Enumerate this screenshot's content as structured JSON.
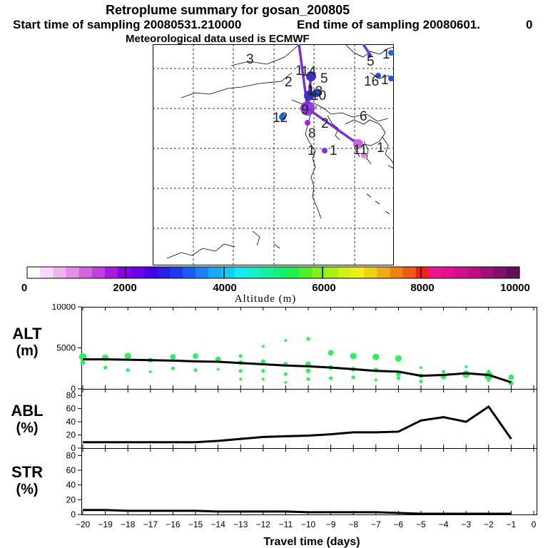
{
  "header": {
    "title": "Retroplume summary for gosan_200805",
    "start_time": "Start time of sampling 20080531.210000",
    "end_time": "End time of sampling 20080601.",
    "end_time_suffix": "0",
    "met_data": "Meteorological data used is ECMWF"
  },
  "map": {
    "labels": [
      {
        "text": "3"
      },
      {
        "text": "1"
      },
      {
        "text": "2"
      },
      {
        "text": "14"
      },
      {
        "text": "5"
      },
      {
        "text": "1"
      },
      {
        "text": "13"
      },
      {
        "text": "10"
      },
      {
        "text": "12"
      },
      {
        "text": "9"
      },
      {
        "text": "2"
      },
      {
        "text": "8"
      },
      {
        "text": "1"
      },
      {
        "text": "6"
      },
      {
        "text": "11"
      },
      {
        "text": "1"
      },
      {
        "text": "5"
      },
      {
        "text": "1"
      },
      {
        "text": "16"
      },
      {
        "text": "1"
      },
      {
        "text": "1"
      }
    ]
  },
  "colorbar": {
    "ticks": [
      "0",
      "2000",
      "4000",
      "6000",
      "8000",
      "10000"
    ],
    "label": "Altitude (m)",
    "colors": [
      "#ffffff",
      "#f7d9f7",
      "#efb3ef",
      "#e38de6",
      "#d166e0",
      "#bf40dd",
      "#a51cdd",
      "#8a00e0",
      "#6a00e6",
      "#4800ea",
      "#2d1be8",
      "#1a3aee",
      "#1a5cf2",
      "#1a82f5",
      "#1aa8f7",
      "#14cdf5",
      "#14eaf0",
      "#14f0c8",
      "#14f0a0",
      "#14f078",
      "#1ef050",
      "#50f028",
      "#82f014",
      "#aaf014",
      "#d2f014",
      "#f0f014",
      "#f0d214",
      "#f0aa14",
      "#f08214",
      "#f05a14",
      "#f01e1e",
      "#f0148c",
      "#e60f96",
      "#d20f8c",
      "#be0f82",
      "#a00f78",
      "#820f6e",
      "#640f5a"
    ]
  },
  "chart_data": [
    {
      "type": "line",
      "name": "ALT",
      "ylabel_top": "ALT",
      "ylabel_bottom": "(m)",
      "ylim": [
        0,
        10000
      ],
      "yticks": [
        "10000",
        "5000",
        "0"
      ],
      "x": [
        -20,
        -19,
        -18,
        -17,
        -16,
        -15,
        -14,
        -13,
        -12,
        -11,
        -10,
        -9,
        -8,
        -7,
        -6,
        -5,
        -4,
        -3,
        -2,
        -1
      ],
      "series": [
        {
          "name": "mean altitude",
          "values": [
            3600,
            3600,
            3550,
            3500,
            3450,
            3350,
            3300,
            3150,
            3000,
            2850,
            2750,
            2600,
            2400,
            2200,
            2100,
            1600,
            1700,
            1900,
            1700,
            800
          ]
        }
      ],
      "scatter": [
        [
          -20,
          3900,
          8
        ],
        [
          -20,
          3200,
          5
        ],
        [
          -19,
          3800,
          7
        ],
        [
          -19,
          2600,
          4
        ],
        [
          -18,
          4000,
          7
        ],
        [
          -18,
          2300,
          4
        ],
        [
          -17,
          3500,
          5
        ],
        [
          -17,
          2100,
          3
        ],
        [
          -16,
          3900,
          6
        ],
        [
          -16,
          2500,
          4
        ],
        [
          -15,
          4000,
          6
        ],
        [
          -15,
          2300,
          4
        ],
        [
          -14,
          3600,
          6
        ],
        [
          -14,
          2400,
          3
        ],
        [
          -13,
          4000,
          4
        ],
        [
          -13,
          3200,
          5
        ],
        [
          -13,
          2200,
          4
        ],
        [
          -13,
          1200,
          3
        ],
        [
          -12,
          5200,
          3
        ],
        [
          -12,
          3300,
          5
        ],
        [
          -12,
          2200,
          4
        ],
        [
          -12,
          1200,
          3
        ],
        [
          -11,
          5900,
          3
        ],
        [
          -11,
          3000,
          5
        ],
        [
          -11,
          1800,
          4
        ],
        [
          -11,
          800,
          3
        ],
        [
          -10,
          6100,
          4
        ],
        [
          -10,
          3000,
          6
        ],
        [
          -10,
          2200,
          5
        ],
        [
          -10,
          1200,
          4
        ],
        [
          -9,
          4400,
          6
        ],
        [
          -9,
          2600,
          5
        ],
        [
          -9,
          1300,
          4
        ],
        [
          -8,
          4000,
          7
        ],
        [
          -8,
          2400,
          5
        ],
        [
          -8,
          1400,
          4
        ],
        [
          -7,
          3900,
          7
        ],
        [
          -7,
          2300,
          5
        ],
        [
          -7,
          1100,
          3
        ],
        [
          -6,
          3700,
          7
        ],
        [
          -6,
          1800,
          5
        ],
        [
          -6,
          1300,
          4
        ],
        [
          -5,
          2600,
          3
        ],
        [
          -5,
          1600,
          5
        ],
        [
          -5,
          900,
          4
        ],
        [
          -4,
          2100,
          4
        ],
        [
          -4,
          1500,
          6
        ],
        [
          -3,
          2700,
          3
        ],
        [
          -3,
          1800,
          8
        ],
        [
          -2,
          2200,
          3
        ],
        [
          -2,
          1600,
          9
        ],
        [
          -2,
          1000,
          3
        ],
        [
          -1,
          1400,
          6
        ],
        [
          -1,
          700,
          5
        ]
      ]
    },
    {
      "type": "line",
      "name": "ABL",
      "ylabel_top": "ABL",
      "ylabel_bottom": "(%)",
      "ylim": [
        0,
        90
      ],
      "yticks": [
        "80",
        "60",
        "40",
        "20",
        "0"
      ],
      "x": [
        -20,
        -19,
        -18,
        -17,
        -16,
        -15,
        -14,
        -13,
        -12,
        -11,
        -10,
        -9,
        -8,
        -7,
        -6,
        -5,
        -4,
        -3,
        -2,
        -1
      ],
      "series": [
        {
          "name": "ABL fraction",
          "values": [
            9,
            9,
            9,
            9,
            9,
            9,
            11,
            14,
            17,
            18,
            19,
            21,
            24,
            24,
            25,
            42,
            47,
            40,
            63,
            14
          ]
        }
      ]
    },
    {
      "type": "line",
      "name": "STR",
      "ylabel_top": "STR",
      "ylabel_bottom": "(%)",
      "ylim": [
        0,
        90
      ],
      "yticks": [
        "80",
        "60",
        "40",
        "20",
        "0"
      ],
      "x": [
        -20,
        -19,
        -18,
        -17,
        -16,
        -15,
        -14,
        -13,
        -12,
        -11,
        -10,
        -9,
        -8,
        -7,
        -6,
        -5,
        -4,
        -3,
        -2,
        -1
      ],
      "series": [
        {
          "name": "STR fraction",
          "values": [
            6,
            6,
            5,
            5,
            5,
            5,
            4,
            4,
            4,
            4,
            3,
            3,
            3,
            3,
            2,
            1,
            1,
            1,
            1,
            1
          ]
        }
      ],
      "xlabel": "Travel time (days)",
      "xticks": [
        "−20",
        "−19",
        "−18",
        "−17",
        "−16",
        "−15",
        "−14",
        "−13",
        "−12",
        "−11",
        "−10",
        "−9",
        "−8",
        "−7",
        "−6",
        "−5",
        "−4",
        "−3",
        "−2",
        "−1",
        "0"
      ]
    }
  ]
}
